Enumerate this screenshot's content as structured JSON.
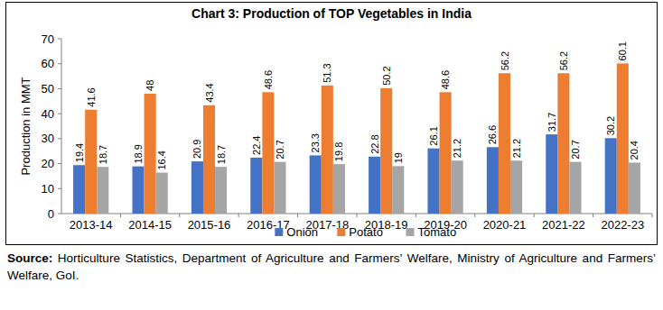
{
  "chart_data": {
    "type": "bar",
    "title": "Chart 3: Production of TOP Vegetables in India",
    "y_label": "Production in MMT",
    "source_label": "Source:",
    "source": "Horticulture Statistics, Department of Agriculture and Farmers’ Welfare, Ministry of Agriculture and Farmers’ Welfare, GoI.",
    "categories": [
      "2013-14",
      "2014-15",
      "2015-16",
      "2016-17",
      "2017-18",
      "2018-19",
      "2019-20",
      "2020-21",
      "2021-22",
      "2022-23"
    ],
    "series": [
      {
        "name": "Onion",
        "color": "#4472c4",
        "values": [
          19.4,
          18.9,
          20.9,
          22.4,
          23.3,
          22.8,
          26.1,
          26.6,
          31.7,
          30.2
        ]
      },
      {
        "name": "Potato",
        "color": "#ed7d31",
        "values": [
          41.6,
          48,
          43.4,
          48.6,
          51.3,
          50.2,
          48.6,
          56.2,
          56.2,
          60.1
        ]
      },
      {
        "name": "Tomato",
        "color": "#a5a5a5",
        "values": [
          18.7,
          16.4,
          18.7,
          20.7,
          19.8,
          19,
          21.2,
          21.2,
          20.7,
          20.4
        ]
      }
    ],
    "ylim": [
      0,
      70
    ],
    "yticks": [
      0,
      10,
      20,
      30,
      40,
      50,
      60,
      70
    ],
    "grid": false,
    "legend": "bottom",
    "data_labels": true
  }
}
